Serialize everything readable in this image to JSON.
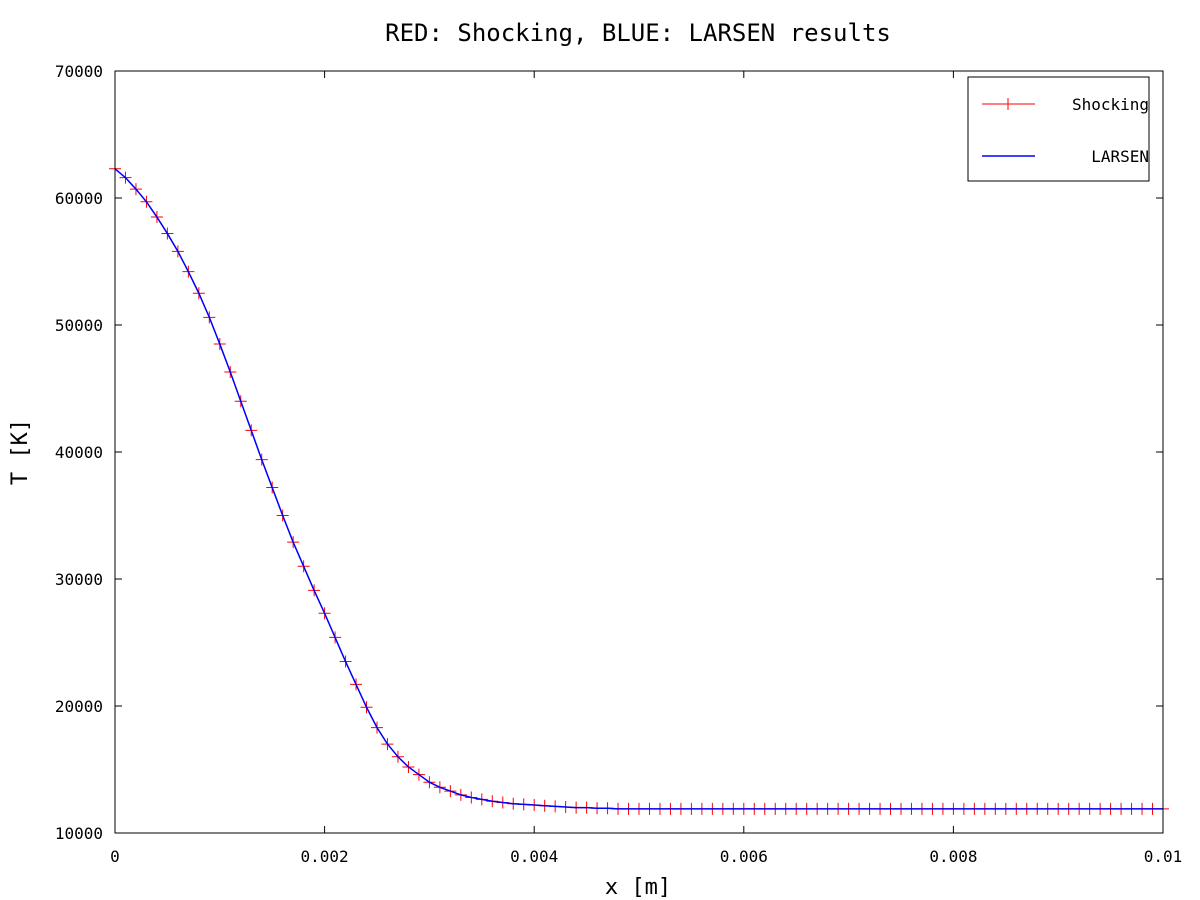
{
  "chart_data": {
    "type": "line",
    "title": "RED: Shocking, BLUE: LARSEN results",
    "xlabel": "x [m]",
    "ylabel": "T [K]",
    "xlim": [
      0,
      0.01
    ],
    "ylim": [
      10000,
      70000
    ],
    "xticks": [
      "0",
      "0.002",
      "0.004",
      "0.006",
      "0.008",
      "0.01"
    ],
    "yticks": [
      "10000",
      "20000",
      "30000",
      "40000",
      "50000",
      "60000",
      "70000"
    ],
    "grid": false,
    "legend_position": "top-right",
    "series": [
      {
        "name": "Shocking",
        "color": "#ff0000",
        "marker": "plus",
        "x": [
          0,
          0.0001,
          0.0002,
          0.0003,
          0.0004,
          0.0005,
          0.0006,
          0.0007,
          0.0008,
          0.0009,
          0.001,
          0.0011,
          0.0012,
          0.0013,
          0.0014,
          0.0015,
          0.0016,
          0.0017,
          0.0018,
          0.0019,
          0.002,
          0.0021,
          0.0022,
          0.0023,
          0.0024,
          0.0025,
          0.0026,
          0.0027,
          0.0028,
          0.0029,
          0.003,
          0.0031,
          0.0032,
          0.0033,
          0.0034,
          0.0035,
          0.0036,
          0.0037,
          0.0038,
          0.0039,
          0.004,
          0.0041,
          0.0042,
          0.0043,
          0.0044,
          0.0045,
          0.0046,
          0.0047,
          0.0048,
          0.0049,
          0.005,
          0.0051,
          0.0052,
          0.0053,
          0.0054,
          0.0055,
          0.0056,
          0.0057,
          0.0058,
          0.0059,
          0.006,
          0.0061,
          0.0062,
          0.0063,
          0.0064,
          0.0065,
          0.0066,
          0.0067,
          0.0068,
          0.0069,
          0.007,
          0.0071,
          0.0072,
          0.0073,
          0.0074,
          0.0075,
          0.0076,
          0.0077,
          0.0078,
          0.0079,
          0.008,
          0.0081,
          0.0082,
          0.0083,
          0.0084,
          0.0085,
          0.0086,
          0.0087,
          0.0088,
          0.0089,
          0.009,
          0.0091,
          0.0092,
          0.0093,
          0.0094,
          0.0095,
          0.0096,
          0.0097,
          0.0098,
          0.0099,
          0.01
        ],
        "y": [
          62300,
          61600,
          60700,
          59700,
          58500,
          57200,
          55800,
          54200,
          52500,
          50600,
          48500,
          46300,
          44000,
          41700,
          39400,
          37200,
          35000,
          32900,
          31000,
          29100,
          27300,
          25400,
          23500,
          21700,
          19900,
          18300,
          17000,
          16000,
          15200,
          14600,
          14000,
          13600,
          13300,
          13000,
          12800,
          12650,
          12500,
          12400,
          12300,
          12250,
          12200,
          12150,
          12100,
          12050,
          12000,
          12000,
          11950,
          11950,
          11900,
          11900,
          11900,
          11900,
          11900,
          11900,
          11900,
          11900,
          11900,
          11900,
          11900,
          11900,
          11900,
          11900,
          11900,
          11900,
          11900,
          11900,
          11900,
          11900,
          11900,
          11900,
          11900,
          11900,
          11900,
          11900,
          11900,
          11900,
          11900,
          11900,
          11900,
          11900,
          11900,
          11900,
          11900,
          11900,
          11900,
          11900,
          11900,
          11900,
          11900,
          11900,
          11900,
          11900,
          11900,
          11900,
          11900,
          11900,
          11900,
          11900,
          11900,
          11900,
          11900
        ]
      },
      {
        "name": "LARSEN",
        "color": "#0000ff",
        "marker": "none",
        "x": [
          0,
          0.0001,
          0.0002,
          0.0003,
          0.0004,
          0.0005,
          0.0006,
          0.0007,
          0.0008,
          0.0009,
          0.001,
          0.0011,
          0.0012,
          0.0013,
          0.0014,
          0.0015,
          0.0016,
          0.0017,
          0.0018,
          0.0019,
          0.002,
          0.0021,
          0.0022,
          0.0023,
          0.0024,
          0.0025,
          0.0026,
          0.0027,
          0.0028,
          0.0029,
          0.003,
          0.0031,
          0.0032,
          0.0033,
          0.0034,
          0.0035,
          0.0036,
          0.0037,
          0.0038,
          0.0039,
          0.004,
          0.0041,
          0.0042,
          0.0043,
          0.0044,
          0.0045,
          0.0046,
          0.0047,
          0.0048,
          0.0049,
          0.005,
          0.0051,
          0.0052,
          0.0053,
          0.0054,
          0.0055,
          0.0056,
          0.0057,
          0.0058,
          0.0059,
          0.006,
          0.0061,
          0.0062,
          0.0063,
          0.0064,
          0.0065,
          0.0066,
          0.0067,
          0.0068,
          0.0069,
          0.007,
          0.0071,
          0.0072,
          0.0073,
          0.0074,
          0.0075,
          0.0076,
          0.0077,
          0.0078,
          0.0079,
          0.008,
          0.0081,
          0.0082,
          0.0083,
          0.0084,
          0.0085,
          0.0086,
          0.0087,
          0.0088,
          0.0089,
          0.009,
          0.0091,
          0.0092,
          0.0093,
          0.0094,
          0.0095,
          0.0096,
          0.0097,
          0.0098,
          0.0099,
          0.01
        ],
        "y": [
          62300,
          61600,
          60700,
          59700,
          58500,
          57200,
          55800,
          54200,
          52500,
          50600,
          48500,
          46300,
          44000,
          41700,
          39400,
          37200,
          35000,
          32900,
          31000,
          29100,
          27300,
          25400,
          23500,
          21700,
          19900,
          18300,
          17000,
          16000,
          15200,
          14600,
          14000,
          13600,
          13300,
          13000,
          12800,
          12650,
          12500,
          12400,
          12300,
          12250,
          12200,
          12150,
          12100,
          12050,
          12000,
          12000,
          11950,
          11950,
          11900,
          11900,
          11900,
          11900,
          11900,
          11900,
          11900,
          11900,
          11900,
          11900,
          11900,
          11900,
          11900,
          11900,
          11900,
          11900,
          11900,
          11900,
          11900,
          11900,
          11900,
          11900,
          11900,
          11900,
          11900,
          11900,
          11900,
          11900,
          11900,
          11900,
          11900,
          11900,
          11900,
          11900,
          11900,
          11900,
          11900,
          11900,
          11900,
          11900,
          11900,
          11900,
          11900,
          11900,
          11900,
          11900,
          11900,
          11900,
          11900,
          11900,
          11900,
          11900,
          11900
        ]
      }
    ]
  }
}
